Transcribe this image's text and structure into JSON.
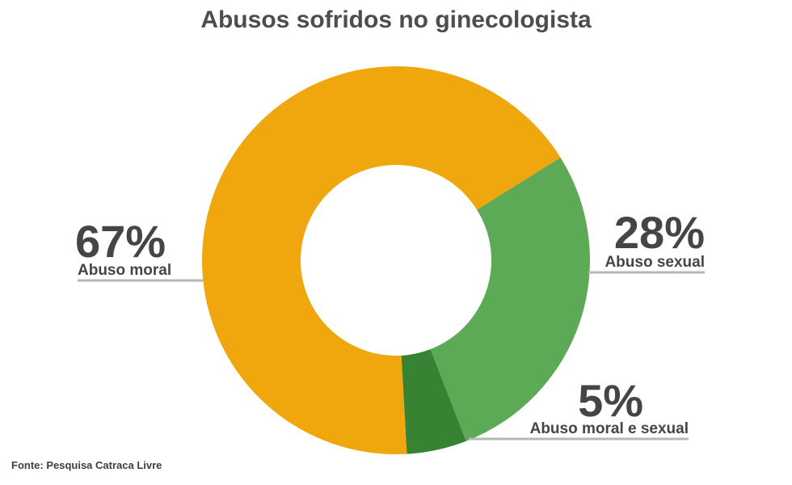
{
  "title": "Abusos sofridos no ginecologista",
  "source": "Fonte: Pesquisa Catraca Livre",
  "chart_data": {
    "type": "pie",
    "title": "Abusos sofridos no ginecologista",
    "donut": true,
    "slices": [
      {
        "label": "Abuso sexual",
        "value": 28,
        "display": "28%",
        "color": "#5daa56"
      },
      {
        "label": "Abuso moral e sexual",
        "value": 5,
        "display": "5%",
        "color": "#378233"
      },
      {
        "label": "Abuso moral",
        "value": 67,
        "display": "67%",
        "color": "#f0a70e"
      }
    ],
    "leader_line_color": "#b7b7b7"
  }
}
